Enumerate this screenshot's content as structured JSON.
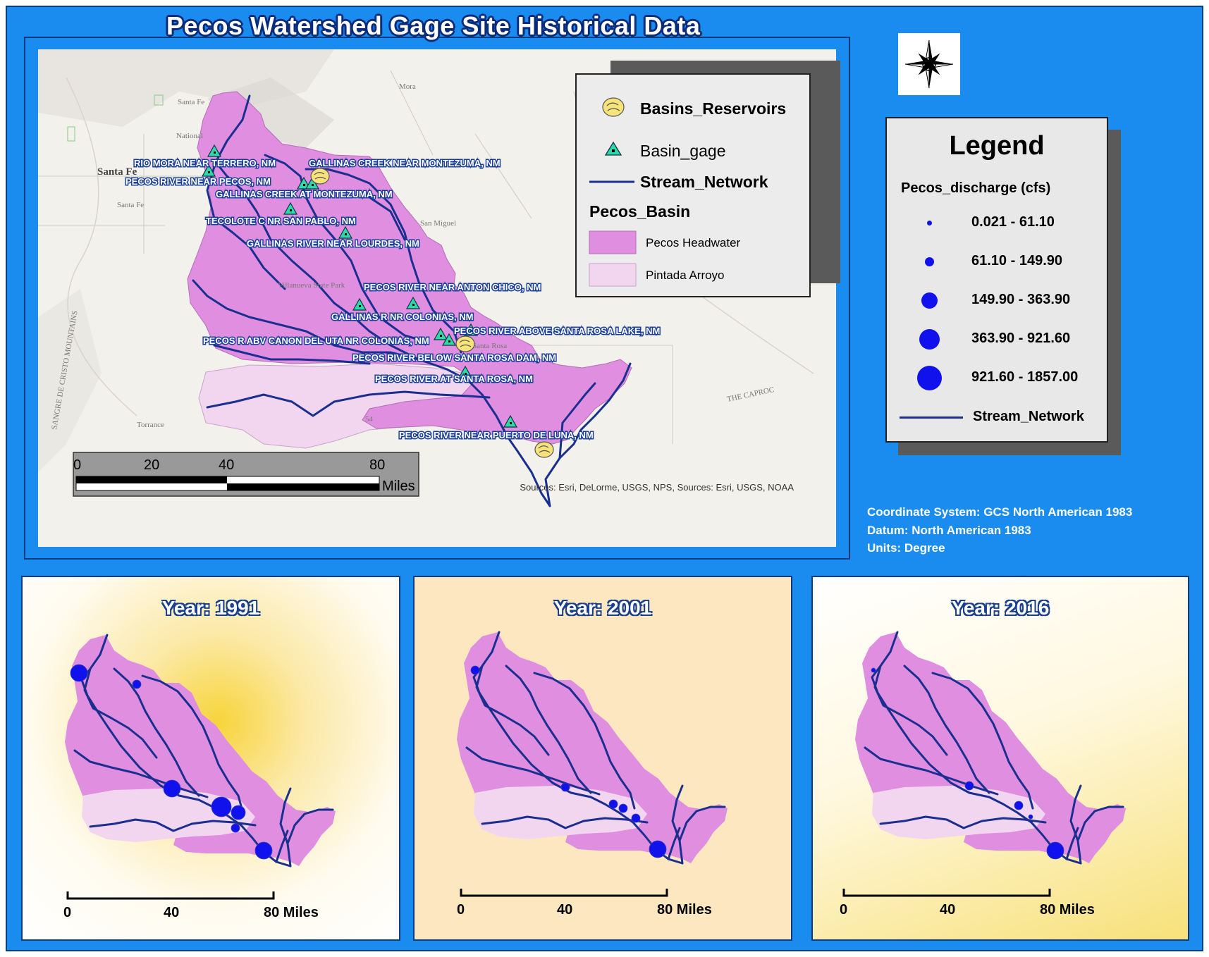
{
  "title": "Pecos Watershed Gage Site Historical Data",
  "colors": {
    "background": "#1a8cf0",
    "pecos_headwater": "#e08fe0",
    "pintada_arroyo": "#f2d6f0",
    "stream": "#1a2f8f",
    "gage": "#2ed8a8",
    "discharge_dot": "#1111ee"
  },
  "inset_legend": {
    "reservoir_label": "Basins_Reservoirs",
    "gage_label": "Basin_gage",
    "stream_label": "Stream_Network",
    "basin_heading": "Pecos_Basin",
    "headwater_label": "Pecos Headwater",
    "arroyo_label": "Pintada Arroyo"
  },
  "legend": {
    "title": "Legend",
    "field": "Pecos_discharge (cfs)",
    "classes": [
      "0.021 - 61.10",
      "61.10 - 149.90",
      "149.90 - 363.90",
      "363.90 - 921.60",
      "921.60 - 1857.00"
    ],
    "stream_label": "Stream_Network"
  },
  "gage_labels": [
    "RIO MORA NEAR TERRERO, NM",
    "GALLINAS CREEK NEAR MONTEZUMA, NM",
    "PECOS RIVER NEAR PECOS, NM",
    "GALLINAS CREEK AT MONTEZUMA, NM",
    "TECOLOTE C NR SAN PABLO, NM",
    "GALLINAS RIVER NEAR LOURDES, NM",
    "PECOS RIVER NEAR ANTON CHICO, NM",
    "GALLINAS R NR COLONIAS, NM",
    "PECOS RIVER ABOVE SANTA ROSA LAKE, NM",
    "PECOS R ABV CANON DEL UTA NR COLONIAS, NM",
    "PECOS RIVER BELOW SANTA ROSA DAM, NM",
    "PECOS RIVER AT SANTA ROSA, NM",
    "PECOS RIVER NEAR PUERTO DE LUNA, NM"
  ],
  "basemap_places": [
    "Santa Fe",
    "Santa Fe",
    "Santa Fe",
    "National",
    "Mora",
    "San Miguel",
    "Villanueva State Park",
    "Santa Rosa",
    "Torrance",
    "THE CAPROC",
    "54",
    "SANGRE DE CRISTO MOUNTAINS"
  ],
  "scalebar_main": {
    "ticks": [
      "0",
      "20",
      "40",
      "80"
    ],
    "unit": "Miles"
  },
  "sources": "Sources: Esri, DeLorme, USGS, NPS, Sources: Esri, USGS, NOAA",
  "coordinate_info": {
    "line1": "Coordinate System: GCS North American 1983",
    "line2": "Datum: North American 1983",
    "line3": "Units: Degree"
  },
  "panels": [
    {
      "year_label": "Year: 1991",
      "scale": [
        "0",
        "40",
        "80 Miles"
      ],
      "dot_classes": [
        4,
        2,
        4,
        5,
        3,
        2,
        4
      ]
    },
    {
      "year_label": "Year: 2001",
      "scale": [
        "0",
        "40",
        "80 Miles"
      ],
      "dot_classes": [
        2,
        1,
        2,
        2,
        2,
        2,
        4
      ]
    },
    {
      "year_label": "Year: 2016",
      "scale": [
        "0",
        "40",
        "80 Miles"
      ],
      "dot_classes": [
        1,
        1,
        2,
        2,
        1,
        1,
        4
      ]
    }
  ]
}
